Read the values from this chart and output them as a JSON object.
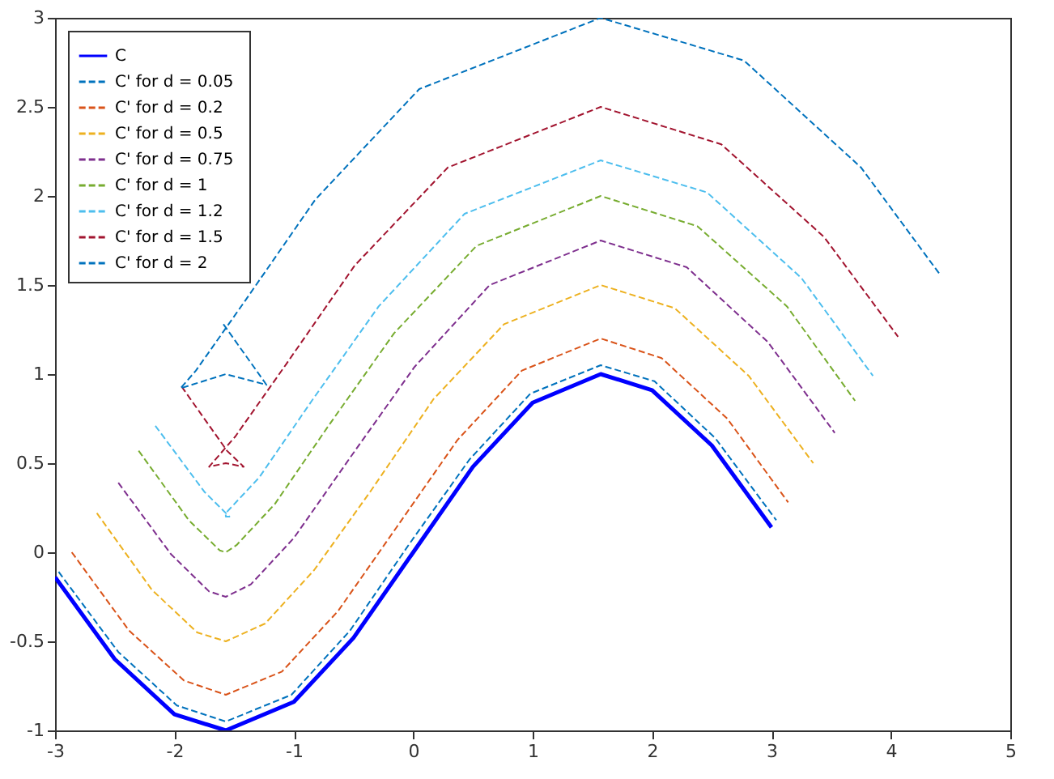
{
  "chart_data": {
    "type": "line",
    "xlim": [
      -3,
      5
    ],
    "xticks": [
      -3,
      -2,
      -1,
      0,
      1,
      2,
      3,
      4,
      5
    ],
    "ylim": [
      -1,
      3
    ],
    "yticks": [
      -1,
      -0.5,
      0,
      0.5,
      1,
      1.5,
      2,
      2.5,
      3
    ],
    "grid": false,
    "legend": "top left",
    "marker": "none",
    "series": [
      {
        "name": "C",
        "color": "#0000ff",
        "line_style": "solid",
        "x": [
          -3,
          -2.5,
          -2,
          -1.57,
          -1,
          -0.5,
          0,
          0.5,
          1,
          1.57,
          2,
          2.5,
          3
        ],
        "values": [
          -0.14,
          -0.6,
          -0.91,
          -1,
          -0.84,
          -0.48,
          0,
          0.48,
          0.84,
          1,
          0.91,
          0.6,
          0.14
        ]
      },
      {
        "name": "C'  for d = 0.05",
        "color": "#0072bd",
        "line_style": "dashed",
        "x": [
          -2.97,
          -2.47,
          -1.98,
          -1.57,
          -1.02,
          -0.53,
          -0.04,
          0.47,
          0.98,
          1.57,
          2.02,
          2.53,
          3.04
        ],
        "values": [
          -0.11,
          -0.56,
          -0.86,
          -0.95,
          -0.8,
          -0.44,
          0.04,
          0.52,
          0.89,
          1.05,
          0.96,
          0.64,
          0.18
        ]
      },
      {
        "name": "C'  for d = 0.2",
        "color": "#d95319",
        "line_style": "dashed",
        "x": [
          -2.86,
          -2.38,
          -1.92,
          -1.57,
          -1.1,
          -0.63,
          -0.14,
          0.37,
          0.91,
          1.57,
          2.08,
          2.63,
          3.14
        ],
        "values": [
          0,
          -0.44,
          -0.72,
          -0.8,
          -0.67,
          -0.33,
          0.14,
          0.63,
          1.02,
          1.2,
          1.09,
          0.75,
          0.28
        ]
      },
      {
        "name": "C'  for d = 0.5",
        "color": "#edb120",
        "line_style": "dashed",
        "x": [
          -2.65,
          -2.19,
          -1.81,
          -1.57,
          -1.24,
          -0.83,
          -0.35,
          0.17,
          0.76,
          1.57,
          2.19,
          2.81,
          3.35
        ],
        "values": [
          0.22,
          -0.21,
          -0.45,
          -0.5,
          -0.4,
          -0.1,
          0.35,
          0.86,
          1.28,
          1.5,
          1.37,
          0.99,
          0.5
        ]
      },
      {
        "name": "C'  for d = 0.75",
        "color": "#7e2f8e",
        "line_style": "dashed",
        "x": [
          -2.47,
          -2.03,
          -1.71,
          -1.57,
          -1.36,
          -1,
          -0.53,
          0.01,
          0.64,
          1.57,
          2.29,
          2.97,
          3.53
        ],
        "values": [
          0.39,
          -0.01,
          -0.22,
          -0.25,
          -0.18,
          0.08,
          0.53,
          1.04,
          1.5,
          1.75,
          1.6,
          1.18,
          0.67
        ]
      },
      {
        "name": "C'  for d = 1",
        "color": "#77ac30",
        "line_style": "dashed",
        "x": [
          -2.3,
          -1.88,
          -1.62,
          -1.57,
          -1.48,
          -1.16,
          -0.71,
          -0.16,
          0.53,
          1.57,
          2.38,
          3.13,
          3.7
        ],
        "values": [
          0.57,
          0.18,
          0.01,
          0,
          0.04,
          0.27,
          0.71,
          1.23,
          1.72,
          2,
          1.83,
          1.38,
          0.85
        ]
      },
      {
        "name": "C'  for d = 1.2",
        "color": "#4dbeee",
        "line_style": "dashed",
        "x": [
          -2.16,
          -1.75,
          -1.54,
          -1.57,
          -1.57,
          -1.29,
          -0.85,
          -0.29,
          0.43,
          1.57,
          2.46,
          3.25,
          3.85
        ],
        "values": [
          0.71,
          0.34,
          0.2,
          0.2,
          0.22,
          0.42,
          0.85,
          1.38,
          1.9,
          2.2,
          2.02,
          1.54,
          0.99
        ]
      },
      {
        "name": "C'  for d = 1.5",
        "color": "#a2142f",
        "line_style": "dashed",
        "x": [
          -1.94,
          -1.56,
          -1.42,
          -1.57,
          -1.71,
          -1.49,
          -1.06,
          -0.49,
          0.29,
          1.57,
          2.58,
          3.44,
          4.06
        ],
        "values": [
          0.93,
          0.57,
          0.48,
          0.5,
          0.48,
          0.65,
          1.06,
          1.61,
          2.16,
          2.5,
          2.29,
          1.77,
          1.21
        ]
      },
      {
        "name": "C'  for d = 2",
        "color": "#0072bd",
        "line_style": "dashed",
        "x": [
          -1.59,
          -1.25,
          -1.23,
          -1.57,
          -1.95,
          -1.82,
          -1.41,
          -0.82,
          0.05,
          1.57,
          2.77,
          3.75,
          4.41
        ],
        "values": [
          1.28,
          0.96,
          0.94,
          1,
          0.92,
          1.02,
          1.41,
          1.98,
          2.6,
          3,
          2.76,
          2.16,
          1.56
        ]
      }
    ]
  }
}
